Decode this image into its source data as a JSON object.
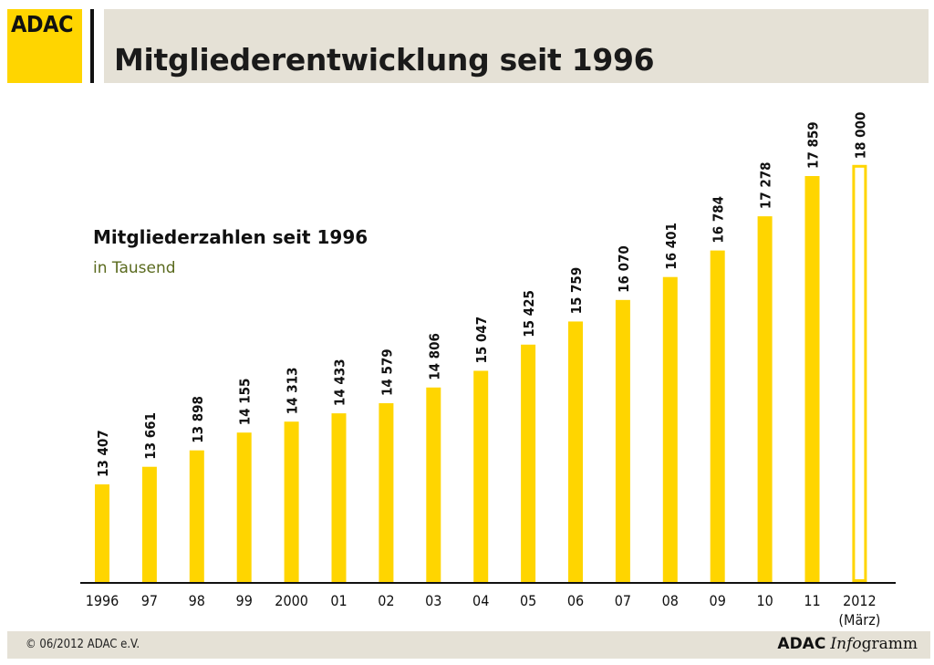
{
  "logo": {
    "text": "ADAC"
  },
  "header": {
    "title": "Mitgliederentwicklung seit 1996"
  },
  "footer": {
    "copyright": "© 06/2012 ADAC e.V.",
    "brand_bold": "ADAC",
    "brand_italic": "Info",
    "brand_rest": "gramm"
  },
  "colors": {
    "accent": "#ffd500",
    "header_bg": "#e5e1d6",
    "unit_text": "#5a6a1e"
  },
  "chart_data": {
    "type": "bar",
    "title": "Mitgliederzahlen seit 1996",
    "unit": "in Tausend",
    "categories": [
      "1996",
      "97",
      "98",
      "99",
      "2000",
      "01",
      "02",
      "03",
      "04",
      "05",
      "06",
      "07",
      "08",
      "09",
      "10",
      "11",
      "2012"
    ],
    "category_note_last": "(März)",
    "values": [
      13407,
      13661,
      13898,
      14155,
      14313,
      14433,
      14579,
      14806,
      15047,
      15425,
      15759,
      16070,
      16401,
      16784,
      17278,
      17859,
      18000
    ],
    "value_labels": [
      "13 407",
      "13 661",
      "13 898",
      "14 155",
      "14 313",
      "14 433",
      "14 579",
      "14 806",
      "15 047",
      "15 425",
      "15 759",
      "16 070",
      "16 401",
      "16 784",
      "17 278",
      "17 859",
      "18 000"
    ],
    "outlined_last": true,
    "grid": false,
    "legend": "none"
  }
}
